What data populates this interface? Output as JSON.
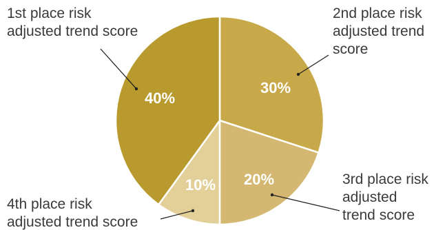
{
  "chart_data": {
    "type": "pie",
    "start": "12 o'clock",
    "direction": "clockwise",
    "slices": [
      {
        "label": "2nd place risk adjusted trend score",
        "value": 30,
        "display": "30%",
        "color": "#c8a94a"
      },
      {
        "label": "3rd place risk adjusted trend score",
        "value": 20,
        "display": "20%",
        "color": "#d4b872"
      },
      {
        "label": "4th place risk adjusted trend score",
        "value": 10,
        "display": "10%",
        "color": "#e3cf98"
      },
      {
        "label": "1st place risk adjusted trend score",
        "value": 40,
        "display": "40%",
        "color": "#b99a2e"
      }
    ]
  }
}
